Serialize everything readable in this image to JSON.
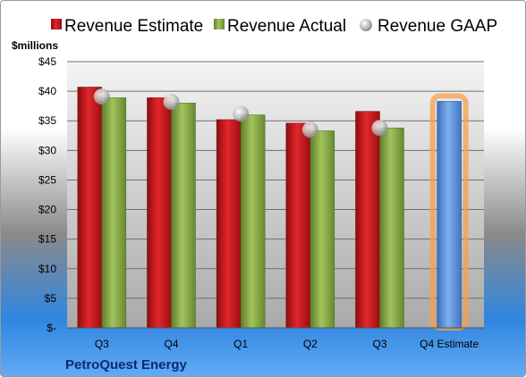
{
  "chart_data": {
    "type": "bar",
    "title": "",
    "company": "PetroQuest Energy",
    "unit_label": "$millions",
    "categories": [
      "Q3",
      "Q4",
      "Q1",
      "Q2",
      "Q3",
      "Q4 Estimate"
    ],
    "series": [
      {
        "name": "Revenue Estimate",
        "kind": "bar",
        "color": "#d2141a",
        "values": [
          40.7,
          38.9,
          35.2,
          34.6,
          36.6,
          null
        ]
      },
      {
        "name": "Revenue Actual",
        "kind": "bar",
        "color": "#8db04a",
        "values": [
          38.9,
          38.0,
          36.0,
          33.3,
          33.8,
          null
        ]
      },
      {
        "name": "Revenue GAAP",
        "kind": "marker",
        "color": "#c0c0c0",
        "values": [
          39.1,
          38.2,
          36.2,
          33.5,
          33.8,
          null
        ]
      },
      {
        "name": "Q4 Estimate",
        "kind": "bar",
        "color": "#5b8fd5",
        "highlight": "#f6a24a",
        "values": [
          null,
          null,
          null,
          null,
          null,
          38.3
        ]
      }
    ],
    "yticks": [
      "$-",
      "$5",
      "$10",
      "$15",
      "$20",
      "$25",
      "$30",
      "$35",
      "$40",
      "$45"
    ],
    "ylim": [
      0,
      45
    ],
    "ystep": 5,
    "grid": true,
    "legend_position": "top"
  }
}
